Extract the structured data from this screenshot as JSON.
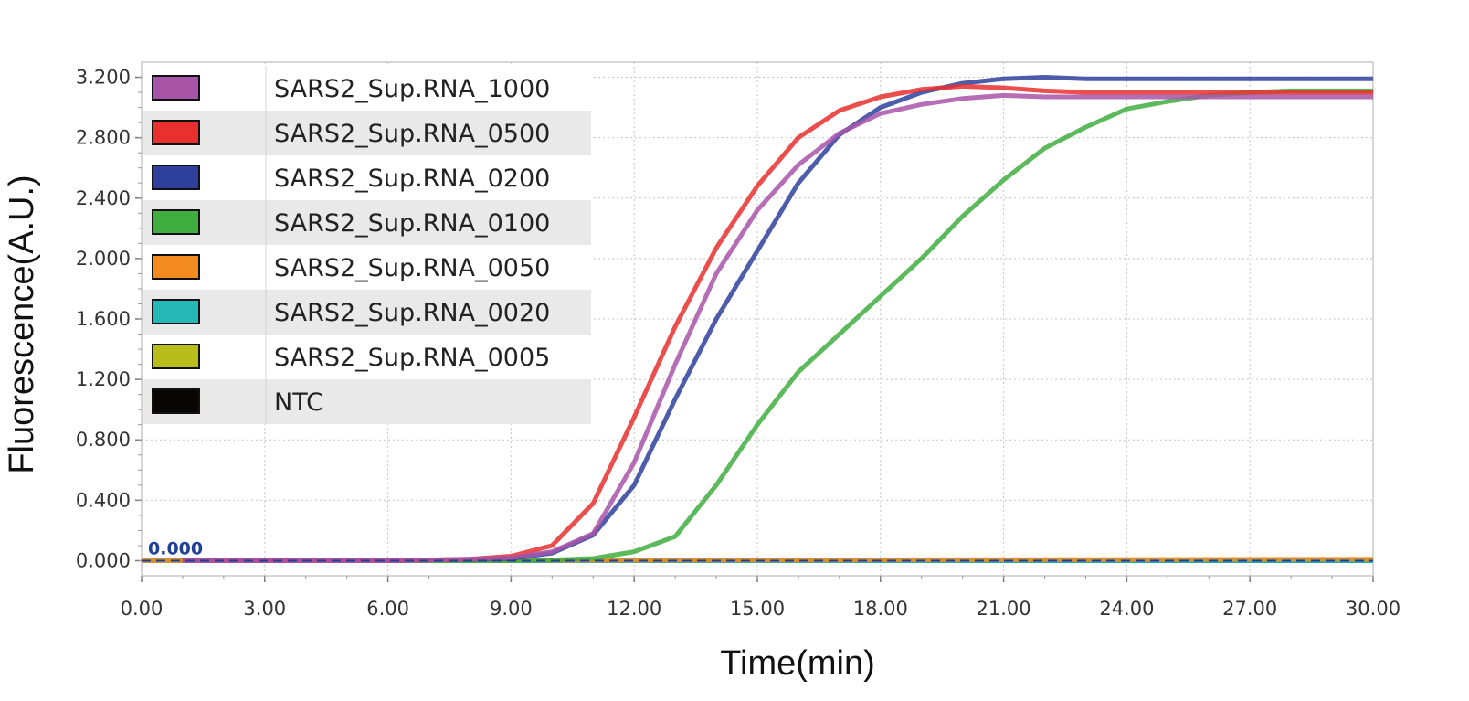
{
  "chart_data": {
    "type": "line",
    "xlabel": "Time(min)",
    "ylabel": "Fluorescence(A.U.)",
    "xlim": [
      0,
      30
    ],
    "ylim": [
      -0.1,
      3.3
    ],
    "x_ticks": [
      "0.00",
      "3.00",
      "6.00",
      "9.00",
      "12.00",
      "15.00",
      "18.00",
      "21.00",
      "24.00",
      "27.00",
      "30.00"
    ],
    "y_ticks": [
      "0.000",
      "0.400",
      "0.800",
      "1.200",
      "1.600",
      "2.000",
      "2.400",
      "2.800",
      "3.200"
    ],
    "grid": true,
    "legend_position": "top-left",
    "baseline_annotation": "0.000",
    "series": [
      {
        "name": "SARS2_Sup.RNA_1000",
        "color": "#a855a8",
        "x": [
          1,
          2,
          3,
          4,
          5,
          6,
          7,
          8,
          9,
          10,
          11,
          12,
          13,
          14,
          15,
          16,
          17,
          18,
          19,
          20,
          21,
          22,
          23,
          24,
          25,
          26,
          27,
          28,
          29,
          30
        ],
        "y": [
          0,
          0,
          0,
          0,
          0,
          0,
          0.005,
          0.01,
          0.02,
          0.06,
          0.18,
          0.65,
          1.3,
          1.9,
          2.32,
          2.62,
          2.83,
          2.96,
          3.02,
          3.06,
          3.08,
          3.07,
          3.07,
          3.07,
          3.07,
          3.07,
          3.07,
          3.07,
          3.07,
          3.07
        ]
      },
      {
        "name": "SARS2_Sup.RNA_0500",
        "color": "#e8302e",
        "x": [
          1,
          2,
          3,
          4,
          5,
          6,
          7,
          8,
          9,
          10,
          11,
          12,
          13,
          14,
          15,
          16,
          17,
          18,
          19,
          20,
          21,
          22,
          23,
          24,
          25,
          26,
          27,
          28,
          29,
          30
        ],
        "y": [
          0,
          0,
          0,
          0,
          0,
          0,
          0.005,
          0.01,
          0.03,
          0.1,
          0.38,
          0.95,
          1.55,
          2.07,
          2.48,
          2.8,
          2.98,
          3.07,
          3.12,
          3.14,
          3.13,
          3.11,
          3.1,
          3.1,
          3.1,
          3.1,
          3.1,
          3.1,
          3.1,
          3.1
        ]
      },
      {
        "name": "SARS2_Sup.RNA_0200",
        "color": "#2e3f9c",
        "x": [
          1,
          2,
          3,
          4,
          5,
          6,
          7,
          8,
          9,
          10,
          11,
          12,
          13,
          14,
          15,
          16,
          17,
          18,
          19,
          20,
          21,
          22,
          23,
          24,
          25,
          26,
          27,
          28,
          29,
          30
        ],
        "y": [
          0,
          0,
          0,
          0,
          0,
          0,
          0.005,
          0.008,
          0.015,
          0.05,
          0.17,
          0.5,
          1.07,
          1.6,
          2.05,
          2.5,
          2.82,
          3.0,
          3.1,
          3.16,
          3.19,
          3.2,
          3.19,
          3.19,
          3.19,
          3.19,
          3.19,
          3.19,
          3.19,
          3.19
        ]
      },
      {
        "name": "SARS2_Sup.RNA_0100",
        "color": "#3fae3f",
        "x": [
          1,
          2,
          3,
          4,
          5,
          6,
          7,
          8,
          9,
          10,
          11,
          12,
          13,
          14,
          15,
          16,
          17,
          18,
          19,
          20,
          21,
          22,
          23,
          24,
          25,
          26,
          27,
          28,
          29,
          30
        ],
        "y": [
          0,
          0,
          0,
          0,
          0,
          0,
          0,
          0,
          0,
          0.005,
          0.015,
          0.06,
          0.16,
          0.5,
          0.9,
          1.25,
          1.5,
          1.75,
          2.0,
          2.28,
          2.52,
          2.73,
          2.87,
          2.99,
          3.04,
          3.08,
          3.1,
          3.11,
          3.11,
          3.11
        ]
      },
      {
        "name": "SARS2_Sup.RNA_0050",
        "color": "#f28a1e",
        "x": [
          0,
          30
        ],
        "y": [
          0,
          0.01
        ]
      },
      {
        "name": "SARS2_Sup.RNA_0020",
        "color": "#26b7b7",
        "x": [
          0,
          30
        ],
        "y": [
          0,
          0
        ]
      },
      {
        "name": "SARS2_Sup.RNA_0005",
        "color": "#b8bd1c",
        "x": [
          0,
          30
        ],
        "y": [
          0,
          0.005
        ]
      },
      {
        "name": "NTC",
        "color": "#0a0505",
        "x": [
          0,
          30
        ],
        "y": [
          0,
          0
        ]
      }
    ]
  }
}
